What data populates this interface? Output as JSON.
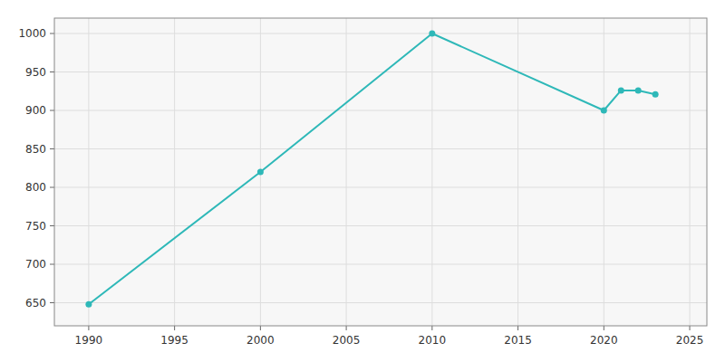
{
  "chart_data": {
    "type": "line",
    "x": [
      1990,
      2000,
      2010,
      2020,
      2021,
      2022,
      2023
    ],
    "values": [
      648,
      820,
      1000,
      900,
      926,
      926,
      921
    ],
    "color": "#2EB8B8",
    "marker": "circle",
    "xlim": [
      1988,
      2026
    ],
    "ylim": [
      620,
      1020
    ],
    "xticks": [
      1990,
      1995,
      2000,
      2005,
      2010,
      2015,
      2020,
      2025
    ],
    "yticks": [
      650,
      700,
      750,
      800,
      850,
      900,
      950,
      1000
    ],
    "grid": true
  }
}
